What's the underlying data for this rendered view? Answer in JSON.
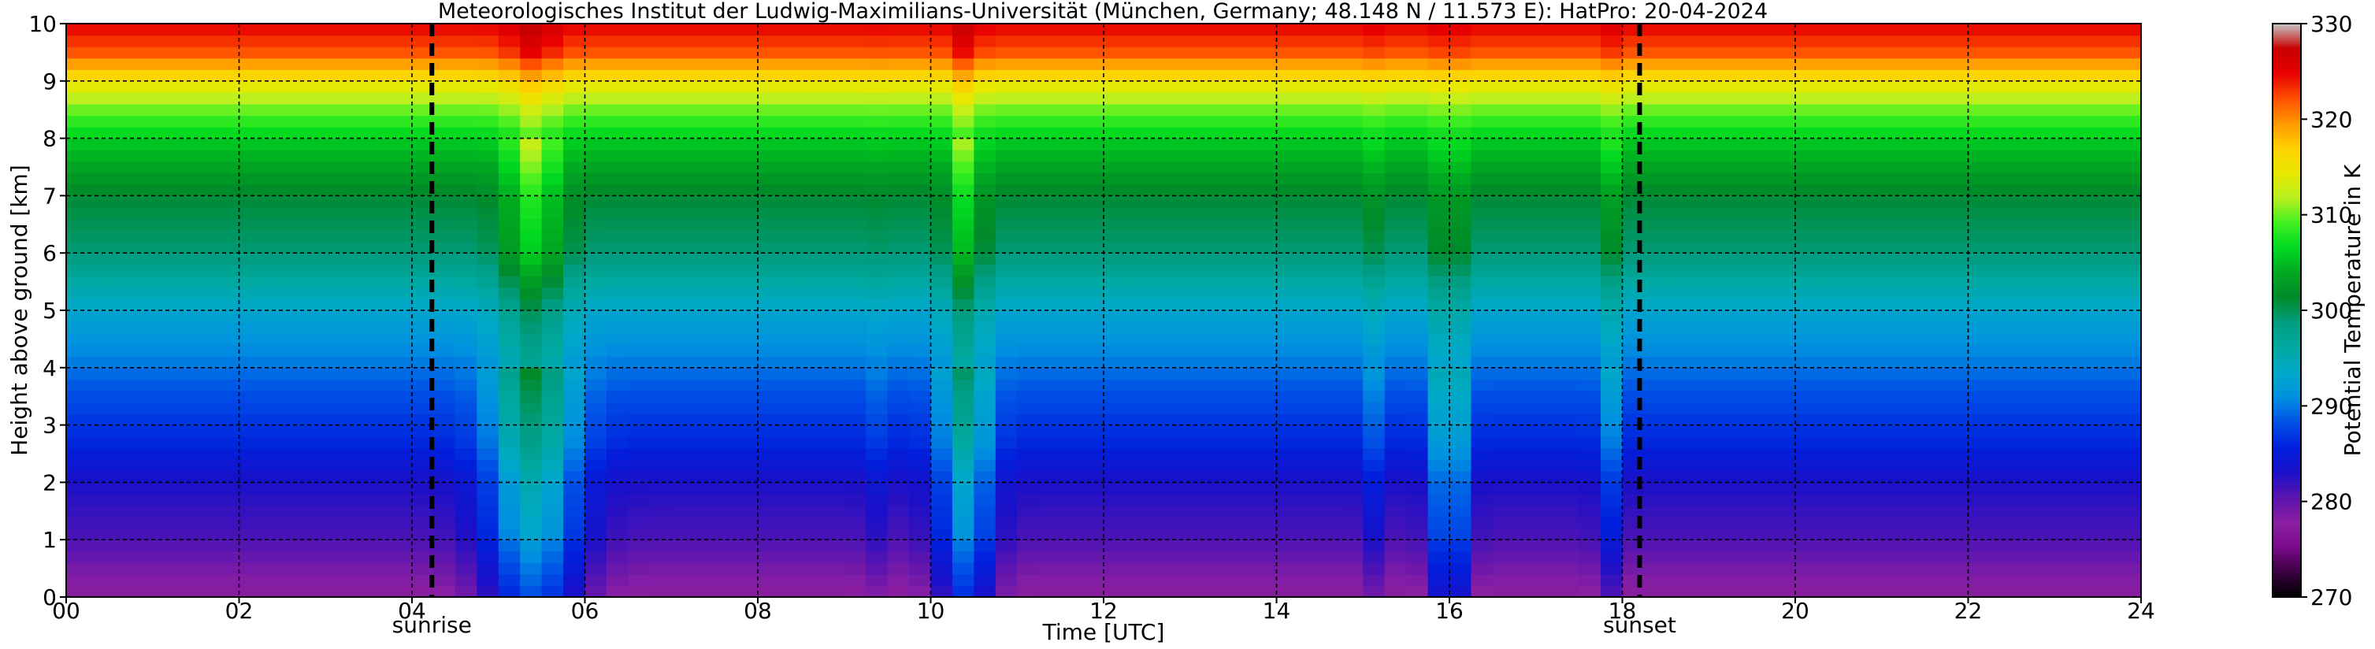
{
  "chart_data": {
    "type": "heatmap",
    "title": "Meteorologisches Institut der Ludwig-Maximilians-Universität (München, Germany; 48.148 N / 11.573 E):    HatPro: 20-04-2024",
    "xlabel": "Time [UTC]",
    "ylabel": "Height above ground [km]",
    "xlim": [
      0,
      24
    ],
    "ylim": [
      0,
      10
    ],
    "x_ticks": [
      "00",
      "02",
      "04",
      "06",
      "08",
      "10",
      "12",
      "14",
      "16",
      "18",
      "20",
      "22",
      "24"
    ],
    "y_ticks": [
      "0",
      "1",
      "2",
      "3",
      "4",
      "5",
      "6",
      "7",
      "8",
      "9",
      "10"
    ],
    "grid": true,
    "colorbar": {
      "label": "Potential Temperature in K",
      "range": [
        270,
        330
      ],
      "ticks": [
        "270",
        "280",
        "290",
        "300",
        "310",
        "320",
        "330"
      ]
    },
    "events": [
      {
        "label": "sunrise",
        "time": 4.23
      },
      {
        "label": "sunset",
        "time": 18.2
      }
    ],
    "field": {
      "description_units": "K",
      "profile_height_km": [
        0,
        0.5,
        1.0,
        2.0,
        2.7,
        3.5,
        5.0,
        6.0,
        7.0,
        8.0,
        8.5,
        9.0,
        9.5,
        10.0
      ],
      "profile_theta_K": [
        277,
        279,
        281,
        283,
        286,
        288,
        293,
        299,
        301,
        306,
        310,
        315,
        322,
        325
      ],
      "disturbances": [
        {
          "center_time": 5.4,
          "width_h": 0.6,
          "strength": 1.0
        },
        {
          "center_time": 10.4,
          "width_h": 0.35,
          "strength": 0.85
        },
        {
          "center_time": 16.0,
          "width_h": 0.22,
          "strength": 0.8
        },
        {
          "center_time": 17.85,
          "width_h": 0.15,
          "strength": 0.35
        },
        {
          "center_time": 9.3,
          "width_h": 0.1,
          "strength": 0.2
        },
        {
          "center_time": 15.1,
          "width_h": 0.1,
          "strength": 0.2
        }
      ]
    }
  },
  "colors": {
    "colormap": [
      "#000000",
      "#3a0040",
      "#7a0a8a",
      "#8b1fa3",
      "#5a14b0",
      "#1a10c8",
      "#0020dd",
      "#0050e6",
      "#0090e0",
      "#00a8c8",
      "#00a8a0",
      "#009c80",
      "#008a2a",
      "#00a820",
      "#00d820",
      "#40f020",
      "#b8f020",
      "#e8e800",
      "#ffd000",
      "#ff9800",
      "#ff5000",
      "#e80000",
      "#c80000",
      "#c8c8c8"
    ]
  }
}
